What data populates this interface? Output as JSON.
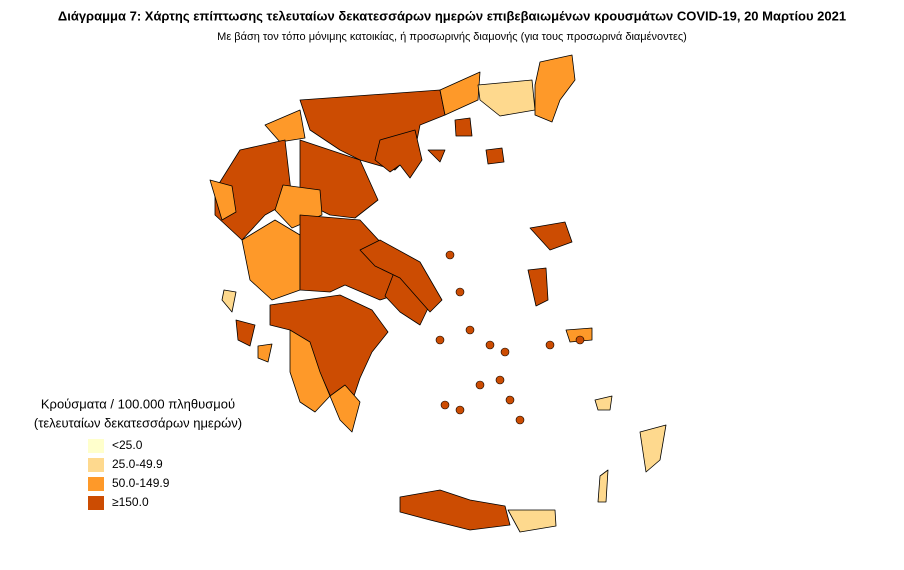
{
  "title": "Διάγραμμα 7: Χάρτης επίπτωσης τελευταίων δεκατεσσάρων ημερών επιβεβαιωμένων κρουσμάτων COVID-19, 20 Μαρτίου 2021",
  "subtitle": "Με βάση τον τόπο μόνιμης κατοικίας, ή προσωρινής διαμονής (για τους προσωρινά διαμένοντες)",
  "legend": {
    "title": [
      "Κρούσματα / 100.000 πληθυσμού",
      "(τελευταίων δεκατεσσάρων ημερών)"
    ],
    "items": [
      {
        "label": "<25.0",
        "color": "#ffffcc"
      },
      {
        "label": "25.0-49.9",
        "color": "#fed98e"
      },
      {
        "label": "50.0-149.9",
        "color": "#fe9929"
      },
      {
        "label": "≥150.0",
        "color": "#cc4c02"
      }
    ]
  }
}
